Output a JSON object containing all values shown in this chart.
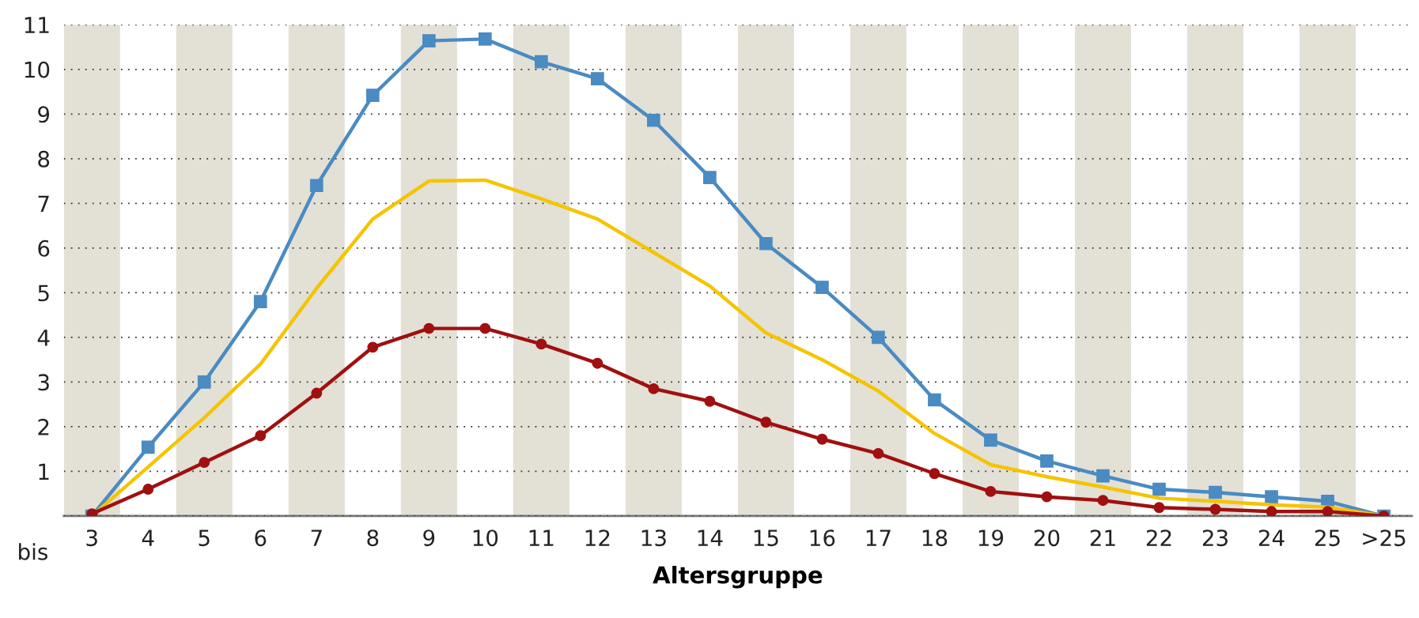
{
  "chart_data": {
    "type": "line",
    "xlabel": "Altersgruppe",
    "annotations": [
      "bis"
    ],
    "x": [
      3,
      4,
      5,
      6,
      7,
      8,
      9,
      10,
      11,
      12,
      13,
      14,
      15,
      16,
      17,
      18,
      19,
      20,
      21,
      22,
      23,
      24,
      25,
      26
    ],
    "xlim": [
      2.5,
      26.5
    ],
    "xticks": [
      3,
      4,
      5,
      6,
      7,
      8,
      9,
      10,
      11,
      12,
      13,
      14,
      15,
      16,
      17,
      18,
      19,
      20,
      21,
      22,
      23,
      24,
      25,
      {
        "value": 26,
        "label": ">25"
      }
    ],
    "ylim": [
      0,
      11
    ],
    "yticks": [
      {
        "value": 0,
        "label": null
      },
      1,
      2,
      3,
      4,
      5,
      6,
      7,
      8,
      9,
      10,
      11
    ],
    "grid": "y",
    "legend": false,
    "line_style": "solid",
    "bands": [
      {
        "axis": "x",
        "from": 2.5,
        "to": 3.5,
        "color": "#e3e0d6"
      },
      {
        "axis": "x",
        "from": 4.5,
        "to": 5.5,
        "color": "#e3e0d6"
      },
      {
        "axis": "x",
        "from": 6.5,
        "to": 7.5,
        "color": "#e3e0d6"
      },
      {
        "axis": "x",
        "from": 8.5,
        "to": 9.5,
        "color": "#e3e0d6"
      },
      {
        "axis": "x",
        "from": 10.5,
        "to": 11.5,
        "color": "#e3e0d6"
      },
      {
        "axis": "x",
        "from": 12.5,
        "to": 13.5,
        "color": "#e3e0d6"
      },
      {
        "axis": "x",
        "from": 14.5,
        "to": 15.5,
        "color": "#e3e0d6"
      },
      {
        "axis": "x",
        "from": 16.5,
        "to": 17.5,
        "color": "#e3e0d6"
      },
      {
        "axis": "x",
        "from": 18.5,
        "to": 19.5,
        "color": "#e3e0d6"
      },
      {
        "axis": "x",
        "from": 20.5,
        "to": 21.5,
        "color": "#e3e0d6"
      },
      {
        "axis": "x",
        "from": 22.5,
        "to": 23.5,
        "color": "#e3e0d6"
      },
      {
        "axis": "x",
        "from": 24.5,
        "to": 25.5,
        "color": "#e3e0d6"
      }
    ],
    "series": [
      {
        "color": "#4a8bc2",
        "marker": "square",
        "values": [
          0,
          1.54,
          3.0,
          4.8,
          7.4,
          9.42,
          10.64,
          10.68,
          10.17,
          9.79,
          8.86,
          7.58,
          6.1,
          5.12,
          4.0,
          2.6,
          1.7,
          1.23,
          0.9,
          0.6,
          0.53,
          0.43,
          0.33,
          0
        ]
      },
      {
        "color": "#f5c400",
        "marker": "none",
        "values": [
          0,
          1.1,
          2.2,
          3.4,
          5.1,
          6.65,
          7.5,
          7.52,
          7.1,
          6.65,
          5.9,
          5.15,
          4.1,
          3.5,
          2.8,
          1.85,
          1.15,
          0.88,
          0.65,
          0.4,
          0.33,
          0.25,
          0.2,
          0
        ]
      },
      {
        "color": "#a01010",
        "marker": "circle",
        "values": [
          0.05,
          0.6,
          1.2,
          1.8,
          2.75,
          3.78,
          4.2,
          4.2,
          3.85,
          3.42,
          2.85,
          2.57,
          2.1,
          1.72,
          1.4,
          0.95,
          0.55,
          0.43,
          0.35,
          0.19,
          0.15,
          0.1,
          0.1,
          0
        ]
      }
    ]
  }
}
